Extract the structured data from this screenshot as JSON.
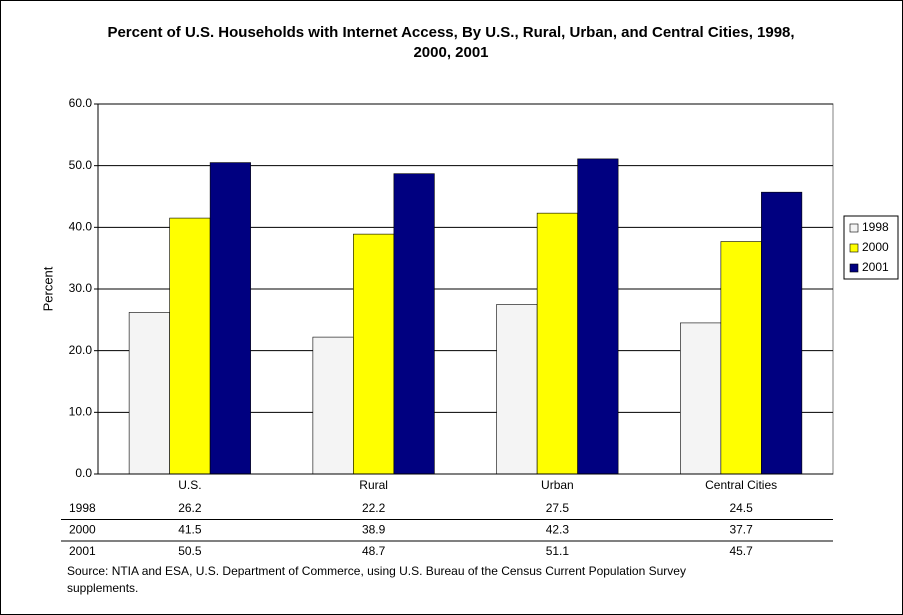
{
  "chart_data": {
    "type": "bar",
    "title": "Percent of U.S. Households with Internet Access,  By U.S., Rural, Urban, and Central Cities, 1998, 2000, 2001",
    "y_label": "Percent",
    "categories": [
      "U.S.",
      "Rural",
      "Urban",
      "Central Cities"
    ],
    "series": [
      {
        "name": "1998",
        "color": "#f4f4f4",
        "values": [
          26.2,
          22.2,
          27.5,
          24.5
        ]
      },
      {
        "name": "2000",
        "color": "#ffff00",
        "values": [
          41.5,
          38.9,
          42.3,
          37.7
        ]
      },
      {
        "name": "2001",
        "color": "#000080",
        "values": [
          50.5,
          48.7,
          51.1,
          45.7
        ]
      }
    ],
    "ylim": [
      0,
      60
    ],
    "yticks": [
      {
        "value": 0,
        "label": "0.0"
      },
      {
        "value": 10,
        "label": "10.0"
      },
      {
        "value": 20,
        "label": "20.0"
      },
      {
        "value": 30,
        "label": "30.0"
      },
      {
        "value": 40,
        "label": "40.0"
      },
      {
        "value": 50,
        "label": "50.0"
      },
      {
        "value": 60,
        "label": "60.0"
      }
    ],
    "grid": true,
    "legend": "right",
    "data_table": true,
    "note": "Source:  NTIA and ESA, U.S. Department of Commerce, using U.S. Bureau of the Census Current Population Survey supplements."
  }
}
